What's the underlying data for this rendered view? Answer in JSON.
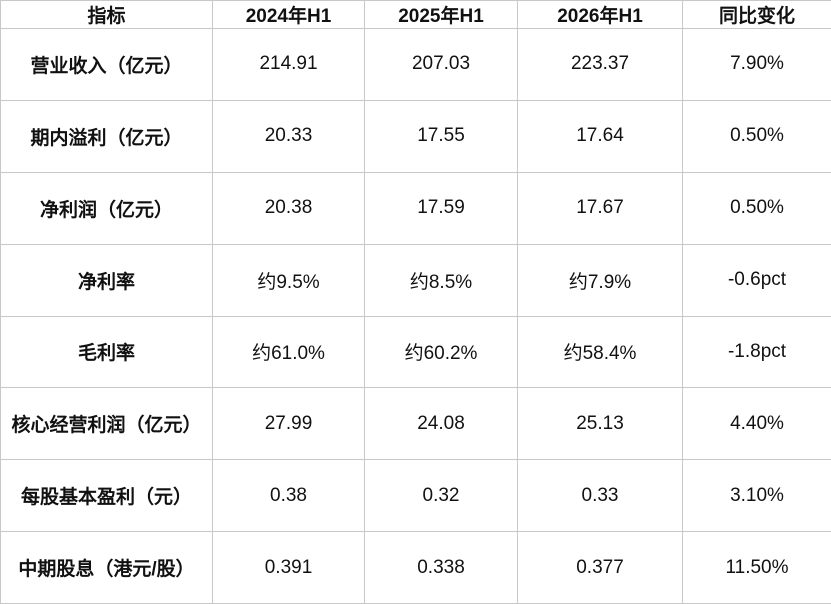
{
  "table": {
    "header": [
      "指标",
      "2024年H1",
      "2025年H1",
      "2026年H1",
      "同比变化"
    ],
    "rows": [
      [
        "营业收入（亿元）",
        "214.91",
        "207.03",
        "223.37",
        "7.90%"
      ],
      [
        "期内溢利（亿元）",
        "20.33",
        "17.55",
        "17.64",
        "0.50%"
      ],
      [
        "净利润（亿元）",
        "20.38",
        "17.59",
        "17.67",
        "0.50%"
      ],
      [
        "净利率",
        "约9.5%",
        "约8.5%",
        "约7.9%",
        "-0.6pct"
      ],
      [
        "毛利率",
        "约61.0%",
        "约60.2%",
        "约58.4%",
        "-1.8pct"
      ],
      [
        "核心经营利润（亿元）",
        "27.99",
        "24.08",
        "25.13",
        "4.40%"
      ],
      [
        "每股基本盈利（元）",
        "0.38",
        "0.32",
        "0.33",
        "3.10%"
      ],
      [
        "中期股息（港元/股）",
        "0.391",
        "0.338",
        "0.377",
        "11.50%"
      ]
    ]
  }
}
